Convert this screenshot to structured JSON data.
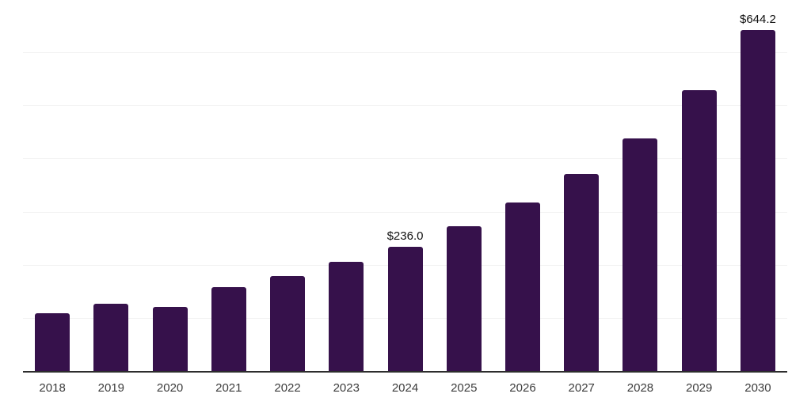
{
  "chart_data": {
    "type": "bar",
    "title": "",
    "categories": [
      "2018",
      "2019",
      "2020",
      "2021",
      "2022",
      "2023",
      "2024",
      "2025",
      "2026",
      "2027",
      "2028",
      "2029",
      "2030"
    ],
    "values": [
      110,
      128,
      122,
      160,
      180,
      207,
      236.0,
      274,
      319,
      373,
      440,
      530,
      644.2
    ],
    "point_labels": [
      "",
      "",
      "",
      "",
      "",
      "",
      "$236.0",
      "",
      "",
      "",
      "",
      "",
      "$644.2"
    ],
    "xlabel": "",
    "ylabel": "",
    "ylim": [
      0,
      700
    ],
    "gridline_interval": 100,
    "grid": "horizontal",
    "legend": "none",
    "y_axis_tick_labels": "none",
    "colors": {
      "bar": "#36114b",
      "axis_line": "#2d2d2d",
      "gridline": "#f2f2f2",
      "tick_label": "#3c3c3c",
      "data_label": "#111111",
      "background": "#ffffff"
    }
  }
}
